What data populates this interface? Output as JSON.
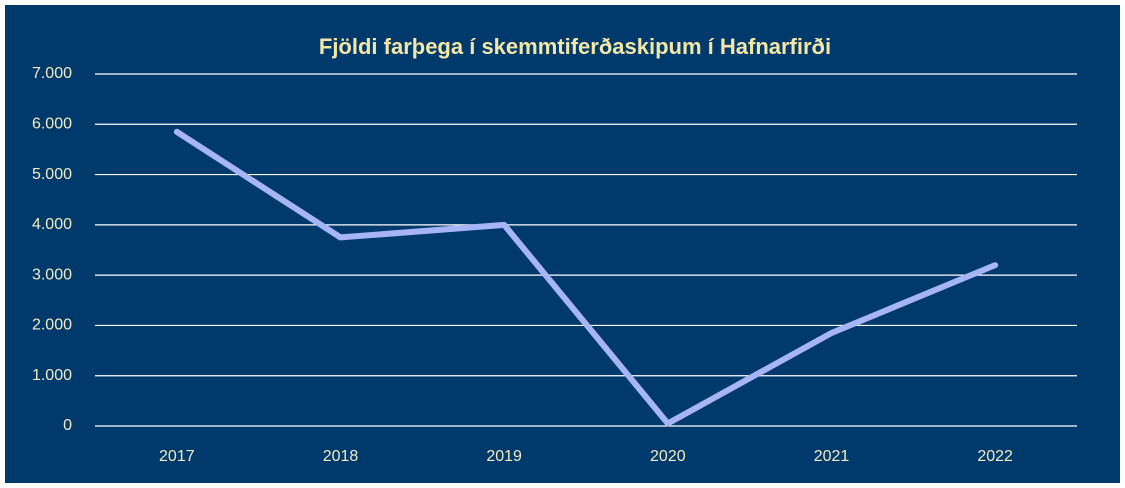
{
  "chart_data": {
    "type": "line",
    "title": "Fjöldi farþega í skemmtiferðaskipum í Hafnarfirði",
    "categories": [
      "2017",
      "2018",
      "2019",
      "2020",
      "2021",
      "2022"
    ],
    "series": [
      {
        "name": "Fjöldi farþega",
        "color": "#a7b5f7",
        "values": [
          5850,
          3750,
          4000,
          50,
          1850,
          3200
        ]
      }
    ],
    "ylim": [
      0,
      7000
    ],
    "yticks": [
      0,
      {
        "value": 1000,
        "label": "1.000"
      },
      {
        "value": 2000,
        "label": "2.000"
      },
      {
        "value": 3000,
        "label": "3.000"
      },
      {
        "value": 4000,
        "label": "4.000"
      },
      {
        "value": 5000,
        "label": "5.000"
      },
      {
        "value": 6000,
        "label": "6.000"
      },
      {
        "value": 7000,
        "label": "7.000"
      }
    ],
    "grid": true
  }
}
